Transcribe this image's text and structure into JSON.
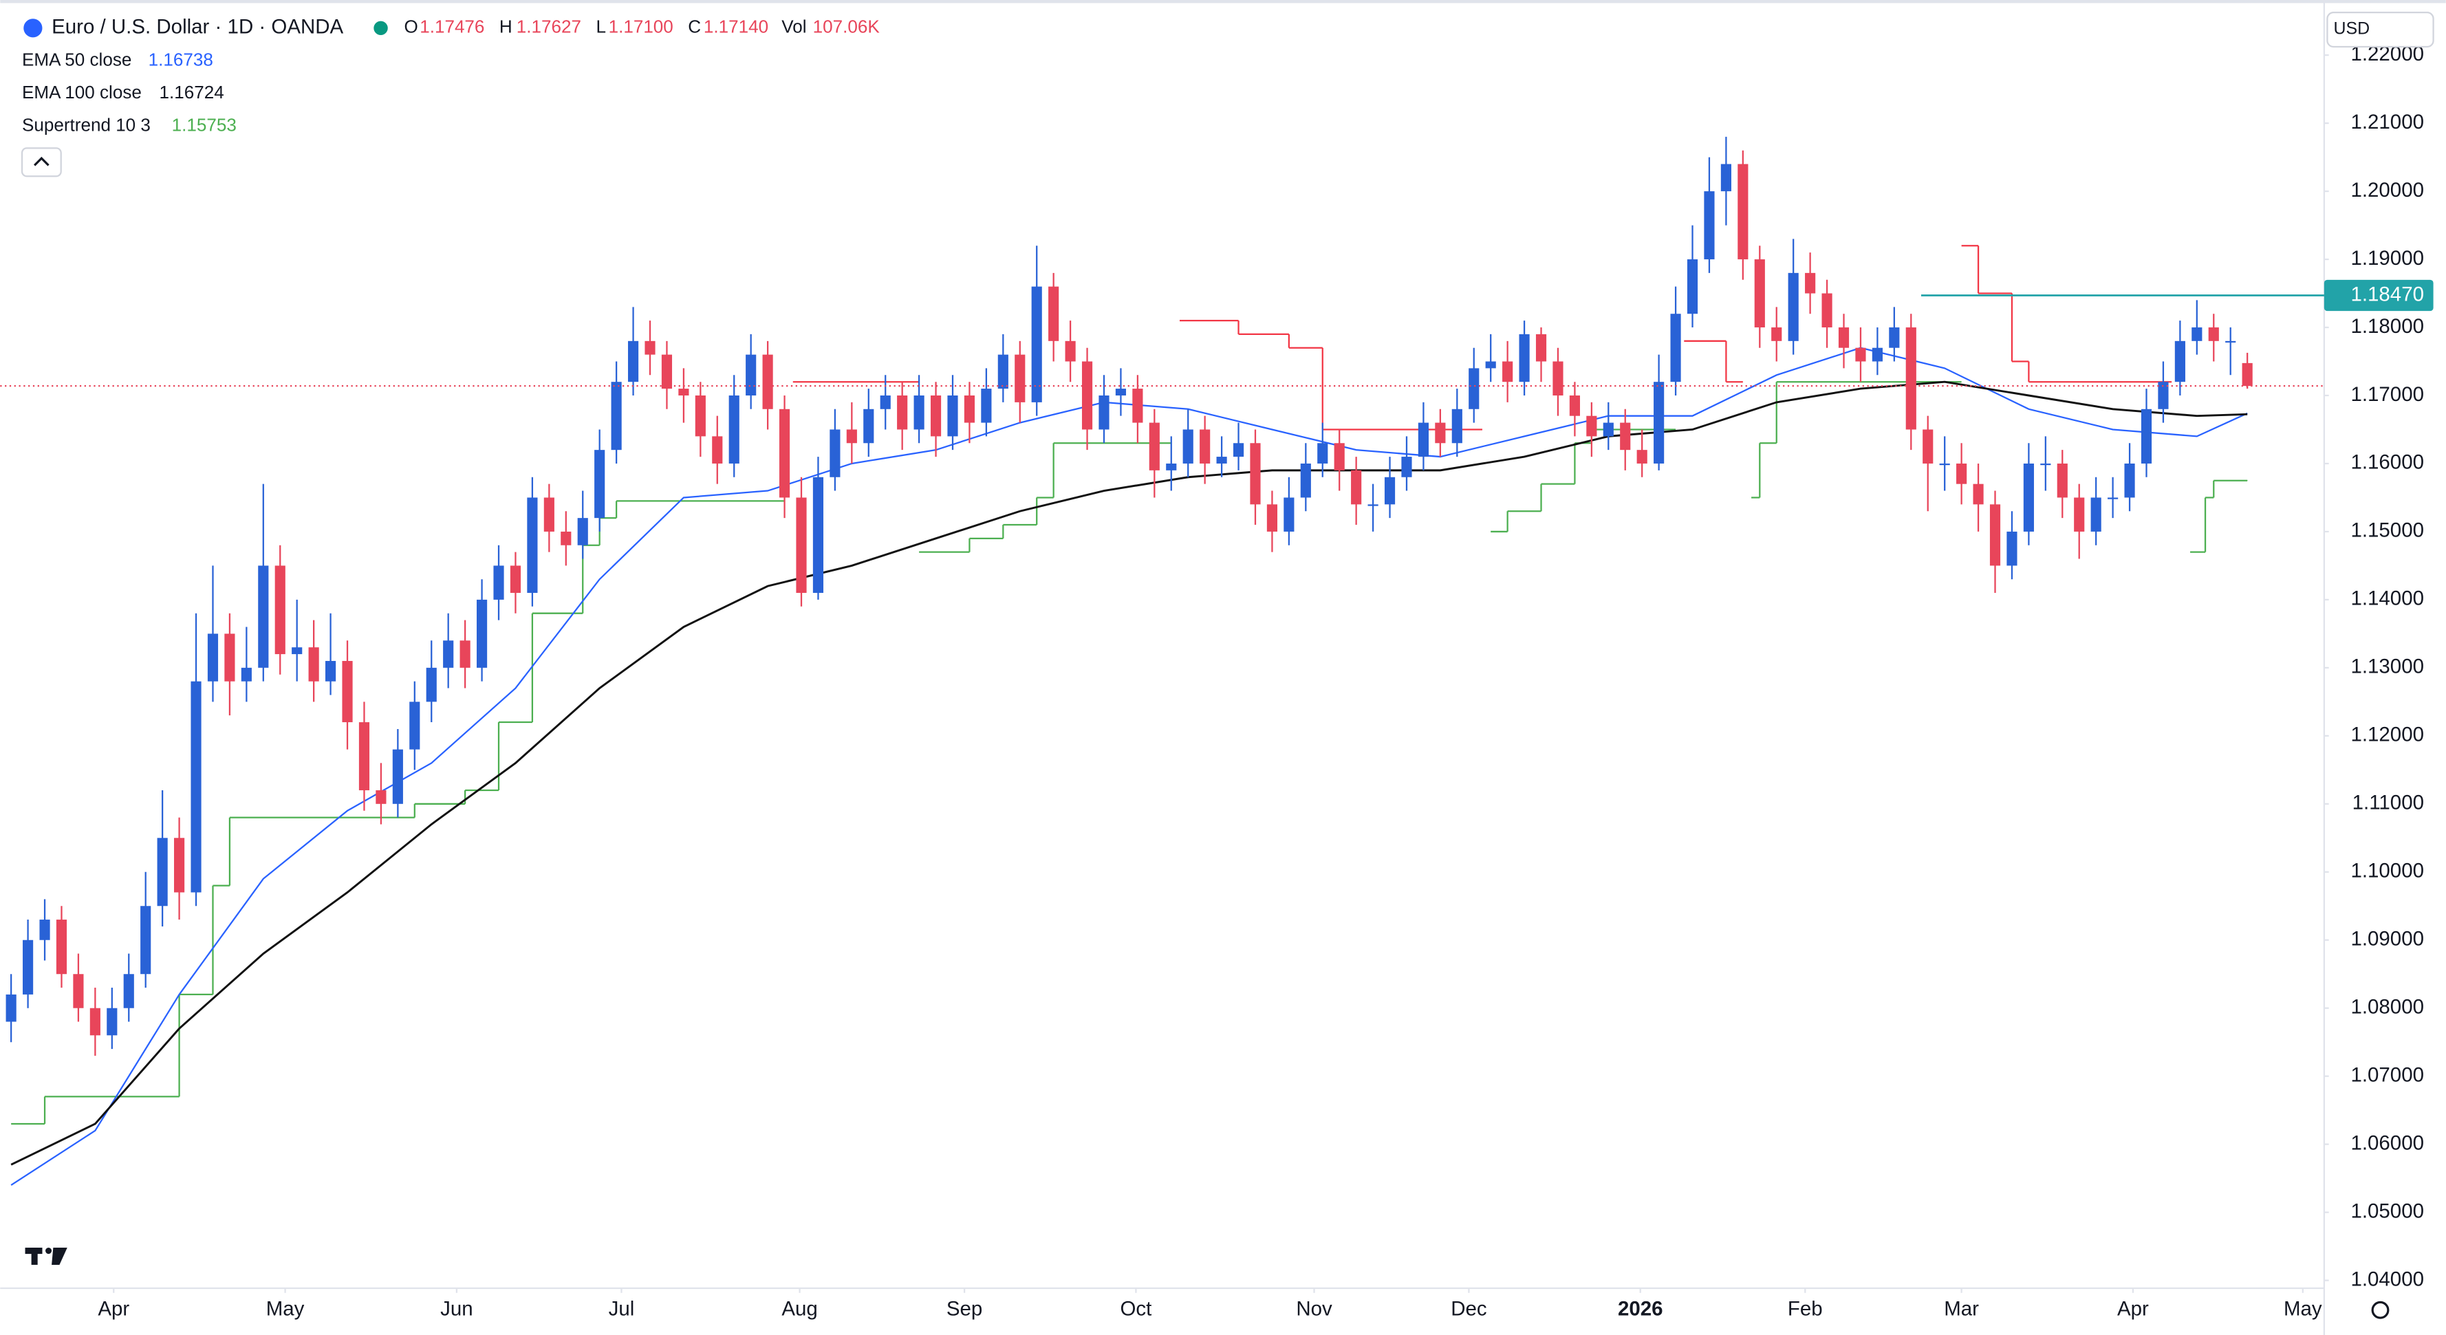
{
  "header": {
    "symbol": "Euro / U.S. Dollar · 1D · OANDA",
    "ohlc": [
      {
        "label": "O",
        "value": "1.17476"
      },
      {
        "label": "H",
        "value": "1.17627"
      },
      {
        "label": "L",
        "value": "1.17100"
      },
      {
        "label": "C",
        "value": "1.17140"
      },
      {
        "label": "Vol",
        "value": "107.06K"
      }
    ],
    "currency": "USD"
  },
  "chart_data": {
    "type": "candlestick",
    "up_color": "#2962d6",
    "down_color": "#e8455a",
    "xlim": [
      -0.65,
      137.57
    ],
    "ylim": [
      1.03885,
      1.22764
    ],
    "xticks": [
      {
        "value": 6.1,
        "label": "Apr"
      },
      {
        "value": 16.3,
        "label": "May"
      },
      {
        "value": 26.5,
        "label": "Jun"
      },
      {
        "value": 36.3,
        "label": "Jul"
      },
      {
        "value": 46.9,
        "label": "Aug"
      },
      {
        "value": 56.7,
        "label": "Sep"
      },
      {
        "value": 66.9,
        "label": "Oct"
      },
      {
        "value": 77.5,
        "label": "Nov"
      },
      {
        "value": 86.7,
        "label": "Dec"
      },
      {
        "value": 96.9,
        "label": "2026"
      },
      {
        "value": 106.7,
        "label": "Feb"
      },
      {
        "value": 116,
        "label": "Mar"
      },
      {
        "value": 126.2,
        "label": "Apr"
      },
      {
        "value": 136.3,
        "label": "May"
      }
    ],
    "yticks": [
      {
        "value": 1.04,
        "label": "1.04000"
      },
      {
        "value": 1.05,
        "label": "1.05000"
      },
      {
        "value": 1.06,
        "label": "1.06000"
      },
      {
        "value": 1.07,
        "label": "1.07000"
      },
      {
        "value": 1.08,
        "label": "1.08000"
      },
      {
        "value": 1.09,
        "label": "1.09000"
      },
      {
        "value": 1.1,
        "label": "1.10000"
      },
      {
        "value": 1.11,
        "label": "1.11000"
      },
      {
        "value": 1.12,
        "label": "1.12000"
      },
      {
        "value": 1.13,
        "label": "1.13000"
      },
      {
        "value": 1.14,
        "label": "1.14000"
      },
      {
        "value": 1.15,
        "label": "1.15000"
      },
      {
        "value": 1.16,
        "label": "1.16000"
      },
      {
        "value": 1.17,
        "label": "1.17000"
      },
      {
        "value": 1.18,
        "label": "1.18000"
      },
      {
        "value": 1.19,
        "label": "1.19000"
      },
      {
        "value": 1.2,
        "label": "1.20000"
      },
      {
        "value": 1.21,
        "label": "1.21000"
      },
      {
        "value": 1.22,
        "label": "1.22000"
      }
    ],
    "grid": false,
    "open": [
      1.078,
      1.082,
      1.09,
      1.093,
      1.085,
      1.08,
      1.076,
      1.08,
      1.085,
      1.095,
      1.105,
      1.097,
      1.128,
      1.135,
      1.128,
      1.13,
      1.145,
      1.132,
      1.133,
      1.128,
      1.131,
      1.122,
      1.112,
      1.11,
      1.118,
      1.125,
      1.13,
      1.134,
      1.13,
      1.14,
      1.145,
      1.141,
      1.155,
      1.15,
      1.148,
      1.152,
      1.162,
      1.172,
      1.178,
      1.176,
      1.171,
      1.17,
      1.164,
      1.16,
      1.17,
      1.176,
      1.168,
      1.155,
      1.141,
      1.158,
      1.165,
      1.163,
      1.168,
      1.17,
      1.165,
      1.17,
      1.164,
      1.17,
      1.166,
      1.171,
      1.176,
      1.169,
      1.186,
      1.178,
      1.175,
      1.165,
      1.17,
      1.171,
      1.166,
      1.159,
      1.16,
      1.165,
      1.16,
      1.161,
      1.163,
      1.154,
      1.15,
      1.155,
      1.16,
      1.163,
      1.159,
      1.154,
      1.154,
      1.158,
      1.161,
      1.166,
      1.163,
      1.168,
      1.174,
      1.175,
      1.172,
      1.179,
      1.175,
      1.17,
      1.167,
      1.164,
      1.166,
      1.162,
      1.16,
      1.172,
      1.182,
      1.19,
      1.2,
      1.204,
      1.19,
      1.18,
      1.178,
      1.188,
      1.185,
      1.18,
      1.177,
      1.175,
      1.177,
      1.18,
      1.165,
      1.16,
      1.16,
      1.157,
      1.154,
      1.145,
      1.15,
      1.16,
      1.16,
      1.155,
      1.15,
      1.155,
      1.155,
      1.16,
      1.168,
      1.172,
      1.178,
      1.18,
      1.178,
      1.17476
    ],
    "high": [
      1.085,
      1.093,
      1.096,
      1.095,
      1.088,
      1.083,
      1.083,
      1.088,
      1.1,
      1.112,
      1.108,
      1.138,
      1.145,
      1.138,
      1.136,
      1.157,
      1.148,
      1.14,
      1.137,
      1.138,
      1.134,
      1.125,
      1.116,
      1.121,
      1.128,
      1.134,
      1.138,
      1.137,
      1.143,
      1.148,
      1.147,
      1.158,
      1.157,
      1.153,
      1.156,
      1.165,
      1.175,
      1.183,
      1.181,
      1.178,
      1.174,
      1.172,
      1.167,
      1.173,
      1.179,
      1.178,
      1.17,
      1.158,
      1.161,
      1.168,
      1.169,
      1.171,
      1.173,
      1.172,
      1.173,
      1.172,
      1.173,
      1.172,
      1.174,
      1.179,
      1.178,
      1.192,
      1.188,
      1.181,
      1.177,
      1.173,
      1.174,
      1.173,
      1.168,
      1.164,
      1.168,
      1.167,
      1.164,
      1.166,
      1.165,
      1.156,
      1.158,
      1.163,
      1.166,
      1.165,
      1.161,
      1.157,
      1.161,
      1.164,
      1.169,
      1.168,
      1.171,
      1.177,
      1.179,
      1.178,
      1.181,
      1.18,
      1.177,
      1.172,
      1.169,
      1.169,
      1.168,
      1.165,
      1.176,
      1.186,
      1.195,
      1.205,
      1.208,
      1.206,
      1.192,
      1.183,
      1.193,
      1.191,
      1.187,
      1.182,
      1.18,
      1.18,
      1.183,
      1.182,
      1.167,
      1.164,
      1.163,
      1.16,
      1.156,
      1.153,
      1.163,
      1.164,
      1.162,
      1.157,
      1.158,
      1.158,
      1.163,
      1.171,
      1.175,
      1.181,
      1.184,
      1.182,
      1.18,
      1.17627
    ],
    "low": [
      1.075,
      1.08,
      1.087,
      1.083,
      1.078,
      1.073,
      1.074,
      1.078,
      1.083,
      1.092,
      1.093,
      1.095,
      1.125,
      1.123,
      1.125,
      1.128,
      1.129,
      1.128,
      1.125,
      1.126,
      1.118,
      1.109,
      1.107,
      1.108,
      1.115,
      1.122,
      1.127,
      1.127,
      1.128,
      1.137,
      1.138,
      1.139,
      1.147,
      1.145,
      1.146,
      1.15,
      1.16,
      1.17,
      1.173,
      1.168,
      1.166,
      1.161,
      1.157,
      1.158,
      1.168,
      1.165,
      1.152,
      1.139,
      1.14,
      1.156,
      1.16,
      1.161,
      1.165,
      1.162,
      1.163,
      1.161,
      1.162,
      1.163,
      1.164,
      1.169,
      1.166,
      1.167,
      1.175,
      1.172,
      1.162,
      1.163,
      1.167,
      1.163,
      1.155,
      1.156,
      1.158,
      1.157,
      1.158,
      1.159,
      1.151,
      1.147,
      1.148,
      1.153,
      1.158,
      1.156,
      1.151,
      1.15,
      1.152,
      1.156,
      1.159,
      1.161,
      1.161,
      1.166,
      1.172,
      1.169,
      1.17,
      1.172,
      1.167,
      1.164,
      1.161,
      1.162,
      1.159,
      1.158,
      1.159,
      1.17,
      1.18,
      1.188,
      1.195,
      1.187,
      1.177,
      1.175,
      1.176,
      1.182,
      1.177,
      1.174,
      1.172,
      1.173,
      1.175,
      1.162,
      1.153,
      1.156,
      1.154,
      1.15,
      1.141,
      1.143,
      1.148,
      1.156,
      1.152,
      1.146,
      1.148,
      1.152,
      1.153,
      1.158,
      1.166,
      1.17,
      1.176,
      1.175,
      1.173,
      1.171
    ],
    "close": [
      1.082,
      1.09,
      1.093,
      1.085,
      1.08,
      1.076,
      1.08,
      1.085,
      1.095,
      1.105,
      1.097,
      1.128,
      1.135,
      1.128,
      1.13,
      1.145,
      1.132,
      1.133,
      1.128,
      1.131,
      1.122,
      1.112,
      1.11,
      1.118,
      1.125,
      1.13,
      1.134,
      1.13,
      1.14,
      1.145,
      1.141,
      1.155,
      1.15,
      1.148,
      1.152,
      1.162,
      1.172,
      1.178,
      1.176,
      1.171,
      1.17,
      1.164,
      1.16,
      1.17,
      1.176,
      1.168,
      1.155,
      1.141,
      1.158,
      1.165,
      1.163,
      1.168,
      1.17,
      1.165,
      1.17,
      1.164,
      1.17,
      1.166,
      1.171,
      1.176,
      1.169,
      1.186,
      1.178,
      1.175,
      1.165,
      1.17,
      1.171,
      1.166,
      1.159,
      1.16,
      1.165,
      1.16,
      1.161,
      1.163,
      1.154,
      1.15,
      1.155,
      1.16,
      1.163,
      1.159,
      1.154,
      1.154,
      1.158,
      1.161,
      1.166,
      1.163,
      1.168,
      1.174,
      1.175,
      1.172,
      1.179,
      1.175,
      1.17,
      1.167,
      1.164,
      1.166,
      1.162,
      1.16,
      1.172,
      1.182,
      1.19,
      1.2,
      1.204,
      1.19,
      1.18,
      1.178,
      1.188,
      1.185,
      1.18,
      1.177,
      1.175,
      1.177,
      1.18,
      1.165,
      1.16,
      1.16,
      1.157,
      1.154,
      1.145,
      1.15,
      1.16,
      1.16,
      1.155,
      1.15,
      1.155,
      1.155,
      1.16,
      1.168,
      1.172,
      1.178,
      1.18,
      1.178,
      1.178,
      1.1714
    ],
    "last_price_color": "#e8455a",
    "series": [
      {
        "name": "EMA 50 close",
        "legend_value": "1.16738",
        "color": "#2962ff",
        "x": [
          0,
          5,
          10,
          15,
          20,
          25,
          30,
          35,
          40,
          45,
          50,
          55,
          60,
          65,
          70,
          75,
          80,
          85,
          90,
          95,
          100,
          105,
          110,
          115,
          120,
          125,
          130,
          133
        ],
        "values": [
          1.054,
          1.062,
          1.082,
          1.099,
          1.109,
          1.116,
          1.127,
          1.143,
          1.155,
          1.156,
          1.16,
          1.162,
          1.166,
          1.169,
          1.168,
          1.165,
          1.162,
          1.161,
          1.164,
          1.167,
          1.167,
          1.173,
          1.177,
          1.174,
          1.168,
          1.165,
          1.164,
          1.16738
        ]
      },
      {
        "name": "EMA 100 close",
        "legend_value": "1.16724",
        "color": "#111111",
        "x": [
          0,
          5,
          10,
          15,
          20,
          25,
          30,
          35,
          40,
          45,
          50,
          55,
          60,
          65,
          70,
          75,
          80,
          85,
          90,
          95,
          100,
          105,
          110,
          115,
          120,
          125,
          130,
          133
        ],
        "values": [
          1.057,
          1.063,
          1.077,
          1.088,
          1.097,
          1.107,
          1.116,
          1.127,
          1.136,
          1.142,
          1.145,
          1.149,
          1.153,
          1.156,
          1.158,
          1.159,
          1.159,
          1.159,
          1.161,
          1.164,
          1.165,
          1.169,
          1.171,
          1.172,
          1.17,
          1.168,
          1.167,
          1.16724
        ]
      }
    ],
    "supertrend": {
      "name": "Supertrend 10 3",
      "legend_value": "1.15753",
      "up": {
        "color": "#4caf50",
        "x": [
          0,
          2,
          10,
          12,
          13,
          24,
          27,
          29,
          31,
          34,
          35,
          36,
          46,
          null,
          54,
          57,
          59,
          61,
          62,
          69,
          null,
          88,
          89,
          91,
          93,
          94,
          99,
          null,
          103.5,
          104,
          105,
          116,
          null,
          129.6,
          130.5,
          131,
          133
        ],
        "values": [
          1.063,
          1.067,
          1.082,
          1.098,
          1.108,
          1.11,
          1.112,
          1.122,
          1.138,
          1.148,
          1.152,
          1.1545,
          1.1545,
          null,
          1.147,
          1.149,
          1.151,
          1.155,
          1.163,
          1.163,
          null,
          1.15,
          1.153,
          1.157,
          1.163,
          1.165,
          1.165,
          null,
          1.155,
          1.163,
          1.172,
          1.172,
          null,
          1.147,
          1.155,
          1.1575,
          1.15753
        ]
      },
      "down": {
        "color": "#f23645",
        "x": [
          46.5,
          54,
          null,
          69.5,
          73,
          76,
          78,
          87.5,
          null,
          99.5,
          102,
          103,
          null,
          116,
          117,
          119,
          120,
          128.5
        ],
        "values": [
          1.172,
          1.172,
          null,
          1.181,
          1.179,
          1.177,
          1.165,
          1.165,
          null,
          1.178,
          1.172,
          1.172,
          null,
          1.192,
          1.185,
          1.175,
          1.172,
          1.172
        ]
      }
    },
    "hline": {
      "value": 1.1847,
      "label": "1.18470",
      "x_start": 113.6,
      "color": "#22a3a8"
    }
  }
}
